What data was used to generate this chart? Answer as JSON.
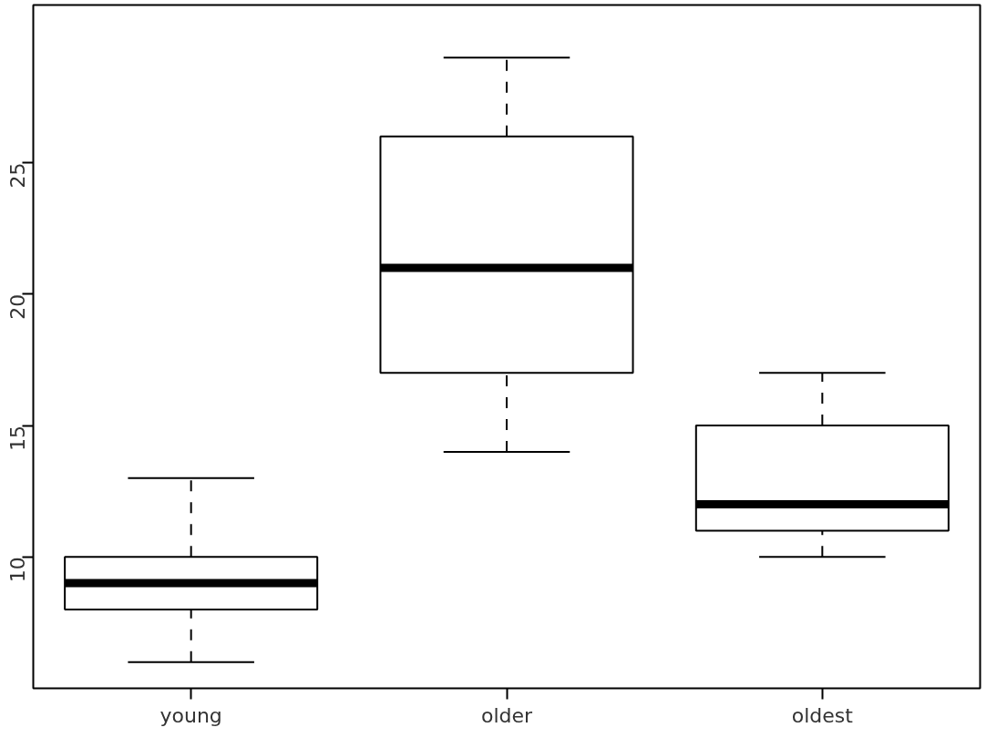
{
  "chart_data": {
    "type": "box",
    "categories": [
      "young",
      "older",
      "oldest"
    ],
    "boxes": [
      {
        "low": 6,
        "q1": 8,
        "median": 9,
        "q3": 10,
        "high": 13
      },
      {
        "low": 14,
        "q1": 17,
        "median": 21,
        "q3": 26,
        "high": 29
      },
      {
        "low": 10,
        "q1": 11,
        "median": 12,
        "q3": 15,
        "high": 17
      }
    ],
    "color": "#ffffff",
    "ylim": [
      5,
      31
    ],
    "yticks": [
      10,
      15,
      20,
      25
    ],
    "grid": false
  }
}
